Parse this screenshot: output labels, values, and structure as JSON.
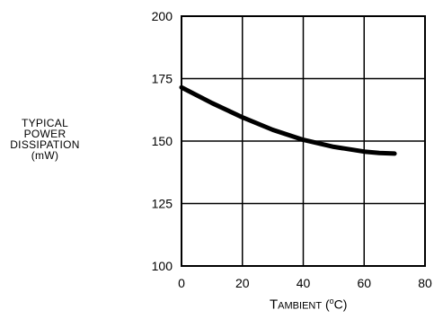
{
  "chart_data": {
    "type": "line",
    "title": "",
    "ylabel_lines": [
      "TYPICAL",
      "POWER",
      "DISSIPATION",
      "(mW)"
    ],
    "xlabel": {
      "initial": "T",
      "subscript": "AMBIENT",
      "unit_open": "(",
      "unit_deg": "o",
      "unit_close": "C)"
    },
    "xlim": [
      0,
      80
    ],
    "ylim": [
      100,
      200
    ],
    "xticks": [
      0,
      20,
      40,
      60,
      80
    ],
    "yticks": [
      100,
      125,
      150,
      175,
      200
    ],
    "grid": true,
    "series": [
      {
        "x": [
          0,
          10,
          20,
          30,
          40,
          50,
          60,
          65,
          70
        ],
        "y": [
          171.5,
          165.2,
          159.5,
          154.5,
          150.5,
          147.7,
          145.8,
          145.2,
          145
        ]
      }
    ]
  }
}
